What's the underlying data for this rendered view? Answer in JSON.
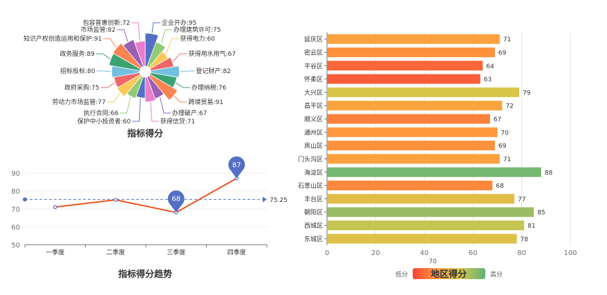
{
  "chart_data": [
    {
      "type": "rose",
      "title": "指标得分",
      "categories": [
        "企业开办",
        "办理建筑许可",
        "获得电力",
        "获得用水用气",
        "登记财产",
        "办理纳税",
        "跨境贸易",
        "办理破产",
        "获得信贷",
        "保护中小投资者",
        "执行合同",
        "劳动力市场监管",
        "政府采购",
        "招标投标",
        "政务服务",
        "知识产权创造运用和保护",
        "市场监管",
        "包容普惠创新"
      ],
      "values": [
        95,
        75,
        60,
        67,
        82,
        76,
        91,
        67,
        71,
        60,
        66,
        77,
        75,
        80,
        89,
        91,
        82,
        72
      ],
      "colors": [
        "#5470c6",
        "#91cc75",
        "#fac858",
        "#ee6666",
        "#73c0de",
        "#3ba272",
        "#fc8452",
        "#9a60b4",
        "#ea7ccc",
        "#5470c6",
        "#91cc75",
        "#fac858",
        "#ee6666",
        "#73c0de",
        "#3ba272",
        "#fc8452",
        "#9a60b4",
        "#ea7ccc"
      ]
    },
    {
      "type": "line",
      "title": "指标得分趋势",
      "categories": [
        "一季度",
        "二季度",
        "三季度",
        "四季度"
      ],
      "values": [
        71,
        75,
        68,
        87
      ],
      "ylim": [
        50,
        90
      ],
      "yticks": [
        50,
        60,
        70,
        80,
        90
      ],
      "markPoints": [
        {
          "label": "68",
          "index": 2
        },
        {
          "label": "87",
          "index": 3
        }
      ],
      "markLine": {
        "value": 75.25,
        "label": "75.25"
      },
      "line_color": "#e8541b",
      "mark_color": "#5470c6"
    },
    {
      "type": "bar",
      "orientation": "horizontal",
      "categories": [
        "延庆区",
        "密云区",
        "平谷区",
        "怀柔区",
        "大兴区",
        "昌平区",
        "顺义区",
        "通州区",
        "房山区",
        "门头沟区",
        "海淀区",
        "石景山区",
        "丰台区",
        "朝阳区",
        "西城区",
        "东城区"
      ],
      "values": [
        71,
        69,
        64,
        63,
        79,
        72,
        67,
        70,
        69,
        71,
        88,
        68,
        77,
        85,
        81,
        78
      ],
      "xlim": [
        0,
        100
      ],
      "xticks": [
        0,
        20,
        40,
        60,
        80,
        100
      ],
      "visualMap": {
        "title": "地区得分",
        "low_label": "低分",
        "high_label": "高分",
        "value_label": "70",
        "min": 60,
        "max": 90
      }
    }
  ]
}
